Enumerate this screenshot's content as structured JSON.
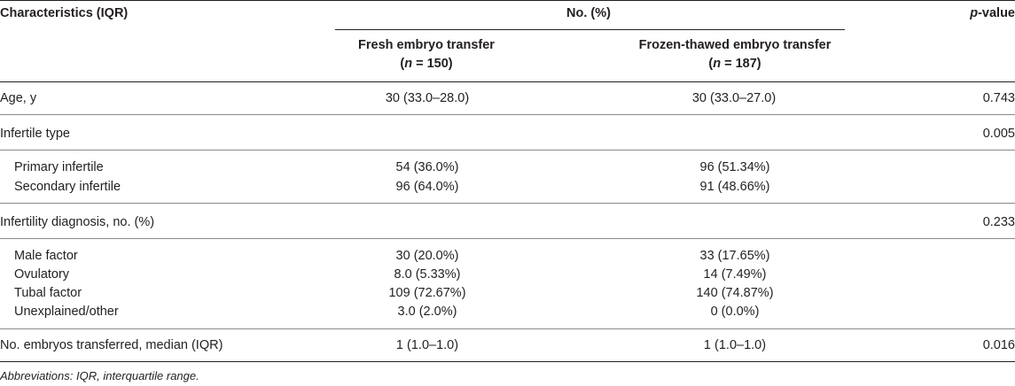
{
  "header": {
    "characteristics": "Characteristics (IQR)",
    "no_pct": "No. (%)",
    "p_value_p": "p",
    "p_value_rest": "-value",
    "fresh_line1": "Fresh embryo transfer",
    "fresh_n_prefix": "(",
    "fresh_n_italic": "n",
    "fresh_n_rest": " = 150)",
    "frozen_line1": "Frozen-thawed embryo transfer",
    "frozen_n_prefix": "(",
    "frozen_n_italic": "n",
    "frozen_n_rest": " = 187)"
  },
  "rows": {
    "age": {
      "label": "Age, y",
      "fresh": "30 (33.0–28.0)",
      "frozen": "30 (33.0–27.0)",
      "p": "0.743"
    },
    "infertile_type": {
      "label": "Infertile type",
      "p": "0.005"
    },
    "primary": {
      "label": "Primary infertile",
      "fresh": "54 (36.0%)",
      "frozen": "96 (51.34%)"
    },
    "secondary": {
      "label": "Secondary infertile",
      "fresh": "96 (64.0%)",
      "frozen": "91 (48.66%)"
    },
    "diagnosis": {
      "label": "Infertility diagnosis, no. (%)",
      "p": "0.233"
    },
    "male": {
      "label": "Male factor",
      "fresh": "30 (20.0%)",
      "frozen": "33 (17.65%)"
    },
    "ovulatory": {
      "label": "Ovulatory",
      "fresh": "8.0 (5.33%)",
      "frozen": "14 (7.49%)"
    },
    "tubal": {
      "label": "Tubal factor",
      "fresh": "109 (72.67%)",
      "frozen": "140 (74.87%)"
    },
    "unexplained": {
      "label": "Unexplained/other",
      "fresh": "3.0 (2.0%)",
      "frozen": "0 (0.0%)"
    },
    "embryos": {
      "label": "No. embryos transferred, median (IQR)",
      "fresh": "1 (1.0–1.0)",
      "frozen": "1 (1.0–1.0)",
      "p": "0.016"
    }
  },
  "footnote": "Abbreviations: IQR, interquartile range."
}
